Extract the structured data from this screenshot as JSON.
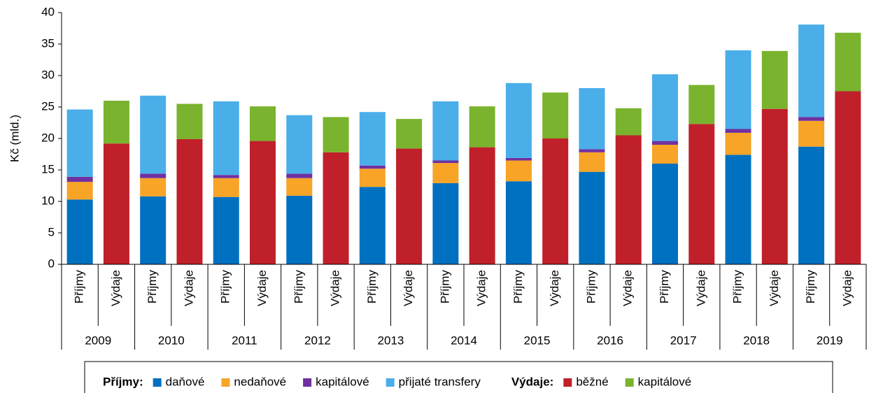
{
  "chart_data": {
    "type": "stacked_bar",
    "y_label": "Kč (mld.)",
    "categories": [
      "Příjmy",
      "Výdaje",
      "Příjmy",
      "Výdaje",
      "Příjmy",
      "Výdaje",
      "Příjmy",
      "Výdaje",
      "Příjmy",
      "Výdaje",
      "Příjmy",
      "Výdaje",
      "Příjmy",
      "Výdaje",
      "Příjmy",
      "Výdaje",
      "Příjmy",
      "Výdaje",
      "Příjmy",
      "Výdaje",
      "Příjmy",
      "Výdaje"
    ],
    "groups": [
      "2009",
      "2010",
      "2011",
      "2012",
      "2013",
      "2014",
      "2015",
      "2016",
      "2017",
      "2018",
      "2019"
    ],
    "ylim": [
      0,
      40
    ],
    "yticks": [
      0,
      5,
      10,
      15,
      20,
      25,
      30,
      35,
      40
    ],
    "series_groups": [
      {
        "name": "Příjmy:",
        "series": [
          {
            "name": "daňové",
            "color": "#0070c0",
            "values": [
              10.3,
              null,
              10.8,
              null,
              10.7,
              null,
              10.9,
              null,
              12.3,
              null,
              12.9,
              null,
              13.2,
              null,
              14.7,
              null,
              16.0,
              null,
              17.4,
              null,
              18.7,
              null
            ]
          },
          {
            "name": "nedaňové",
            "color": "#f7a427",
            "values": [
              2.8,
              null,
              2.9,
              null,
              3.0,
              null,
              2.8,
              null,
              2.9,
              null,
              3.2,
              null,
              3.3,
              null,
              3.1,
              null,
              3.0,
              null,
              3.5,
              null,
              4.1,
              null
            ]
          },
          {
            "name": "kapitálové",
            "color": "#7030a0",
            "values": [
              0.8,
              null,
              0.7,
              null,
              0.5,
              null,
              0.7,
              null,
              0.5,
              null,
              0.4,
              null,
              0.4,
              null,
              0.5,
              null,
              0.6,
              null,
              0.6,
              null,
              0.6,
              null
            ]
          },
          {
            "name": "přijaté transfery",
            "color": "#4aaee8",
            "values": [
              10.7,
              null,
              12.4,
              null,
              11.7,
              null,
              9.3,
              null,
              8.5,
              null,
              9.4,
              null,
              11.9,
              null,
              9.7,
              null,
              10.6,
              null,
              12.5,
              null,
              14.7,
              null
            ]
          }
        ]
      },
      {
        "name": "Výdaje:",
        "series": [
          {
            "name": "běžné",
            "color": "#c0202a",
            "values": [
              null,
              19.2,
              null,
              19.9,
              null,
              19.6,
              null,
              17.8,
              null,
              18.4,
              null,
              18.6,
              null,
              20.0,
              null,
              20.5,
              null,
              22.3,
              null,
              24.7,
              null,
              27.5
            ]
          },
          {
            "name": "kapitálové",
            "color": "#7ab32e",
            "values": [
              null,
              6.8,
              null,
              5.6,
              null,
              5.5,
              null,
              5.6,
              null,
              4.7,
              null,
              6.5,
              null,
              7.3,
              null,
              4.3,
              null,
              6.2,
              null,
              9.2,
              null,
              9.3
            ]
          }
        ]
      }
    ]
  }
}
